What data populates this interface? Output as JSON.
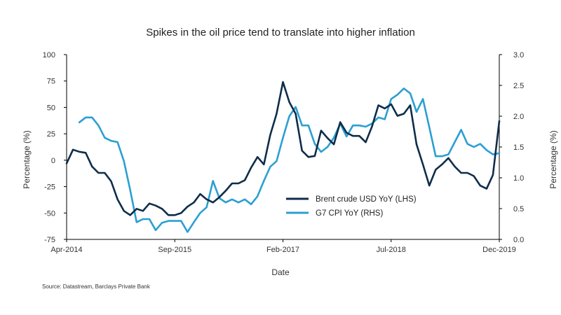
{
  "chart_data": {
    "type": "line",
    "title": "Spikes in the oil price tend to translate into higher inflation",
    "xlabel": "Date",
    "ylabel_left": "Percentage (%)",
    "ylabel_right": "Percentage (%)",
    "x_tick_labels": [
      "Apr-2014",
      "Sep-2015",
      "Feb-2017",
      "Jul-2018",
      "Dec-2019"
    ],
    "x_tick_index": [
      0,
      17,
      34,
      51,
      68
    ],
    "x_range": [
      0,
      68
    ],
    "ylim_left": [
      -75,
      100
    ],
    "ylim_right": [
      0.0,
      3.0
    ],
    "yticks_left": [
      "100",
      "75",
      "50",
      "25",
      "0",
      "-25",
      "-50",
      "-75"
    ],
    "yticks_right": [
      "3.0",
      "2.5",
      "2.0",
      "1.5",
      "1.0",
      "0.5",
      "0.0"
    ],
    "grid": false,
    "legend_position": "center-right",
    "series": [
      {
        "name": "Brent crude USD YoY (LHS)",
        "axis": "left",
        "color": "#0f2d4a",
        "x": [
          0,
          1,
          2,
          3,
          4,
          5,
          6,
          7,
          8,
          9,
          10,
          11,
          12,
          13,
          14,
          15,
          16,
          17,
          18,
          19,
          20,
          21,
          22,
          23,
          24,
          25,
          26,
          27,
          28,
          29,
          30,
          31,
          32,
          33,
          34,
          35,
          36,
          37,
          38,
          39,
          40,
          41,
          42,
          43,
          44,
          45,
          46,
          47,
          48,
          49,
          50,
          51,
          52,
          53,
          54,
          55,
          56,
          57,
          58,
          59,
          60,
          61,
          62,
          63,
          64,
          65,
          66,
          67,
          68
        ],
        "values": [
          -3,
          10,
          8,
          7,
          -6,
          -12,
          -12,
          -20,
          -37,
          -48,
          -52,
          -46,
          -48,
          -41,
          -43,
          -46,
          -52,
          -52,
          -50,
          -44,
          -40,
          -32,
          -37,
          -40,
          -35,
          -29,
          -22,
          -22,
          -19,
          -7,
          3,
          -4,
          24,
          44,
          74,
          55,
          44,
          9,
          3,
          4,
          28,
          21,
          15,
          36,
          26,
          23,
          23,
          17,
          32,
          52,
          49,
          53,
          42,
          44,
          52,
          15,
          -4,
          -24,
          -9,
          -4,
          2,
          -6,
          -12,
          -12,
          -15,
          -24,
          -27,
          -14,
          37
        ]
      },
      {
        "name": "G7 CPI YoY (RHS)",
        "axis": "right",
        "color": "#2b9fd2",
        "x": [
          2,
          3,
          4,
          5,
          6,
          7,
          8,
          9,
          10,
          11,
          12,
          13,
          14,
          15,
          16,
          17,
          18,
          19,
          20,
          21,
          22,
          23,
          24,
          25,
          26,
          27,
          28,
          29,
          30,
          31,
          32,
          33,
          34,
          35,
          36,
          37,
          38,
          39,
          40,
          41,
          42,
          43,
          44,
          45,
          46,
          47,
          48,
          49,
          50,
          51,
          52,
          53,
          54,
          55,
          56,
          57,
          58,
          59,
          60,
          61,
          62,
          63,
          64,
          65,
          66,
          67,
          68
        ],
        "values": [
          1.9,
          1.98,
          1.98,
          1.85,
          1.65,
          1.6,
          1.58,
          1.27,
          0.8,
          0.28,
          0.33,
          0.33,
          0.15,
          0.27,
          0.3,
          0.3,
          0.3,
          0.12,
          0.28,
          0.43,
          0.52,
          0.95,
          0.67,
          0.6,
          0.65,
          0.6,
          0.65,
          0.57,
          0.7,
          0.95,
          1.18,
          1.27,
          1.65,
          2.0,
          2.15,
          1.85,
          1.85,
          1.55,
          1.42,
          1.5,
          1.65,
          1.88,
          1.67,
          1.85,
          1.85,
          1.83,
          1.88,
          1.98,
          1.95,
          2.28,
          2.35,
          2.45,
          2.37,
          2.07,
          2.28,
          1.82,
          1.35,
          1.35,
          1.38,
          1.58,
          1.78,
          1.55,
          1.5,
          1.55,
          1.45,
          1.38,
          1.4
        ]
      }
    ],
    "source": "Source: Datastream, Barclays Private Bank"
  }
}
